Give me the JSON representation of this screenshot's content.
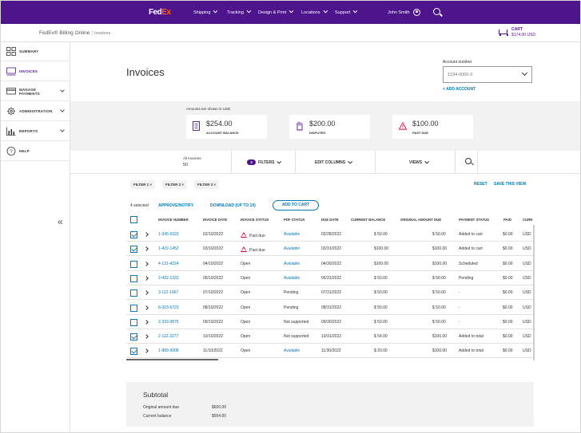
{
  "nav": {
    "logo_fed": "Fed",
    "logo_ex": "Ex",
    "items": [
      {
        "label": "Shipping"
      },
      {
        "label": "Tracking"
      },
      {
        "label": "Design & Print"
      },
      {
        "label": "Locations"
      },
      {
        "label": "Support"
      }
    ],
    "user": "John Smith"
  },
  "subheader": {
    "brand": "FedEx® Billing Online",
    "separator": "|",
    "crumb": "Invoices",
    "cart_label": "CART",
    "cart_amount": "$174.00 USD"
  },
  "sidebar": {
    "items": [
      {
        "label": "SUMMARY",
        "icon": "grid-icon"
      },
      {
        "label": "INVOICES",
        "icon": "invoice-icon"
      },
      {
        "label": "MANAGE PAYMENTS",
        "line1": "MANAGE",
        "line2": "PAYMENTS",
        "icon": "payment-icon"
      },
      {
        "label": "ADMINISTRATION",
        "icon": "gear-icon"
      },
      {
        "label": "REPORTS",
        "icon": "chart-icon"
      },
      {
        "label": "HELP",
        "icon": "help-icon"
      }
    ],
    "collapse": "«"
  },
  "page": {
    "title": "Invoices",
    "account_label": "Account number",
    "account_value": "1234-0000-3",
    "add_account": "+ ADD ACCOUNT"
  },
  "summary": {
    "note": "Amounts are shown in USD",
    "cards": [
      {
        "amount": "$254.00",
        "label": "ACCOUNT BALANCE",
        "icon": "document-icon"
      },
      {
        "amount": "$200.00",
        "label": "DISPUTED",
        "icon": "hand-icon"
      },
      {
        "amount": "$100.00",
        "label": "PAST DUE",
        "icon": "warning-icon"
      }
    ]
  },
  "toolbar": {
    "all_invoices_label": "All invoices",
    "all_invoices_count": "50",
    "filter_count": "3",
    "filters": "FILTERS",
    "edit_columns": "EDIT COLUMNS",
    "views": "VIEWS"
  },
  "chips": [
    {
      "label": "FILTER 1 ×"
    },
    {
      "label": "FILTER 2 ×"
    },
    {
      "label": "FILTER 3 ×"
    }
  ],
  "chip_actions": {
    "reset": "RESET",
    "save_view": "SAVE THIS VIEW"
  },
  "actions": {
    "selected": "4 selected",
    "approve": "APPROVE/NOTIFY",
    "download": "DOWNLOAD (UP TO 10)",
    "add_to_cart": "ADD TO CART"
  },
  "table": {
    "headers": [
      "INVOICE NUMBER",
      "INVOICE DATE",
      "INVOICE STATUS",
      "PDF STATUS",
      "DUE DATE",
      "CURRENT BALANCE",
      "ORIGINAL AMOUNT DUE",
      "PAYMENT STATUS",
      "PAID",
      "CURR"
    ],
    "rows": [
      {
        "checked": true,
        "invoice": "1-345-5323",
        "date": "02/10/2022",
        "status": "Past due",
        "pastdue": true,
        "pdf": "Available",
        "pdf_link": true,
        "due": "02/28/2022",
        "balance": "$  50.00",
        "original": "$  50.00",
        "payment": "Added to cart",
        "paid": "$0.00",
        "curr": "USD"
      },
      {
        "checked": true,
        "invoice": "1-422-1452",
        "date": "03/10/2022",
        "status": "Past due",
        "pastdue": true,
        "pdf": "Available",
        "pdf_link": true,
        "due": "03/31/2022",
        "balance": "$100.00",
        "original": "$100.00",
        "payment": "Added to cart",
        "paid": "$0.00",
        "curr": "USD"
      },
      {
        "checked": false,
        "invoice": "4-131-4224",
        "date": "04/10/2022",
        "status": "Open",
        "pastdue": false,
        "pdf": "Available",
        "pdf_link": true,
        "due": "04/30/2022",
        "balance": "$100.00",
        "original": "$100.00",
        "payment": "Scheduled",
        "paid": "$0.00",
        "curr": "USD"
      },
      {
        "checked": false,
        "invoice": "2-432-1333",
        "date": "05/10/2022",
        "status": "Open",
        "pastdue": false,
        "pdf": "Available",
        "pdf_link": true,
        "due": "05/31/2022",
        "balance": "$  50.00",
        "original": "$  50.00",
        "payment": "Pending",
        "paid": "$0.00",
        "curr": "USD"
      },
      {
        "checked": false,
        "invoice": "3-112-1967",
        "date": "07/10/2022",
        "status": "Open",
        "pastdue": false,
        "pdf": "Pending",
        "pdf_link": false,
        "due": "07/31/2022",
        "balance": "$  50.00",
        "original": "$  50.00",
        "payment": "-",
        "paid": "$0.00",
        "curr": "USD"
      },
      {
        "checked": false,
        "invoice": "8-323-6723",
        "date": "08/10/2022",
        "status": "Open",
        "pastdue": false,
        "pdf": "Pending",
        "pdf_link": false,
        "due": "08/31/2022",
        "balance": "$  50.00",
        "original": "$  50.00",
        "payment": "-",
        "paid": "$0.00",
        "curr": "USD"
      },
      {
        "checked": false,
        "invoice": "2-333-9875",
        "date": "09/10/2022",
        "status": "Open",
        "pastdue": false,
        "pdf": "Not supported",
        "pdf_link": false,
        "due": "09/30/2022",
        "balance": "$  50.00",
        "original": "$  50.00",
        "payment": "-",
        "paid": "$0.00",
        "curr": "USD"
      },
      {
        "checked": true,
        "invoice": "2-112-3277",
        "date": "10/10/2022",
        "status": "Open",
        "pastdue": false,
        "pdf": "Not supported",
        "pdf_link": false,
        "due": "10/31/2022",
        "balance": "$  54.00",
        "original": "$100.00",
        "payment": "Added to total",
        "paid": "$0.00",
        "curr": "USD"
      },
      {
        "checked": true,
        "invoice": "1-889-9908",
        "date": "11/10/2022",
        "status": "Open",
        "pastdue": false,
        "pdf": "Available",
        "pdf_link": true,
        "due": "11/30/2022",
        "balance": "$  20.00",
        "original": "$100.00",
        "payment": "Added to total",
        "paid": "$0.00",
        "curr": "USD"
      }
    ]
  },
  "subtotal": {
    "title": "Subtotal",
    "original_label": "Original amount due",
    "original_value": "$600.00",
    "current_label": "Current balance",
    "current_value": "$554.00"
  }
}
